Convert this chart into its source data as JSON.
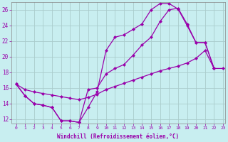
{
  "xlabel": "Windchill (Refroidissement éolien,°C)",
  "bg_color": "#c8eef0",
  "line_color": "#9900aa",
  "grid_color": "#aacccc",
  "xlim": [
    -0.5,
    23.2
  ],
  "ylim": [
    11.5,
    27.0
  ],
  "xticks": [
    0,
    1,
    2,
    3,
    4,
    5,
    6,
    7,
    8,
    9,
    10,
    11,
    12,
    13,
    14,
    15,
    16,
    17,
    18,
    19,
    20,
    21,
    22,
    23
  ],
  "yticks": [
    12,
    14,
    16,
    18,
    20,
    22,
    24,
    26
  ],
  "line1_x": [
    0,
    1,
    2,
    3,
    4,
    5,
    6,
    7,
    8,
    9,
    10,
    11,
    12,
    13,
    14,
    15,
    16,
    17,
    18,
    19,
    20,
    21,
    22
  ],
  "line1_y": [
    16.5,
    15.0,
    14.0,
    13.8,
    13.5,
    11.8,
    11.8,
    11.6,
    13.5,
    15.5,
    20.8,
    22.5,
    22.8,
    23.5,
    24.2,
    26.0,
    26.8,
    26.8,
    26.1,
    24.0,
    21.8,
    21.8,
    18.5
  ],
  "line2_x": [
    0,
    1,
    2,
    3,
    4,
    5,
    6,
    7,
    8,
    9,
    10,
    11,
    12,
    13,
    14,
    15,
    16,
    17,
    18,
    19,
    20,
    21,
    22,
    23
  ],
  "line2_y": [
    16.5,
    15.8,
    15.5,
    15.3,
    15.1,
    14.9,
    14.7,
    14.5,
    14.8,
    15.2,
    15.8,
    16.2,
    16.6,
    17.0,
    17.4,
    17.8,
    18.2,
    18.5,
    18.8,
    19.2,
    19.8,
    20.8,
    18.5,
    18.5
  ],
  "line3_x": [
    0,
    1,
    2,
    3,
    4,
    5,
    6,
    7,
    8,
    9,
    10,
    11,
    12,
    13,
    14,
    15,
    16,
    17,
    18,
    19,
    20,
    21,
    22
  ],
  "line3_y": [
    16.5,
    15.0,
    14.0,
    13.8,
    13.5,
    11.8,
    11.8,
    11.6,
    15.8,
    16.0,
    17.8,
    18.5,
    19.0,
    20.2,
    21.5,
    22.5,
    24.5,
    26.0,
    26.2,
    24.2,
    21.8,
    21.8,
    18.5
  ],
  "marker_size": 2.5,
  "line_width": 0.9
}
